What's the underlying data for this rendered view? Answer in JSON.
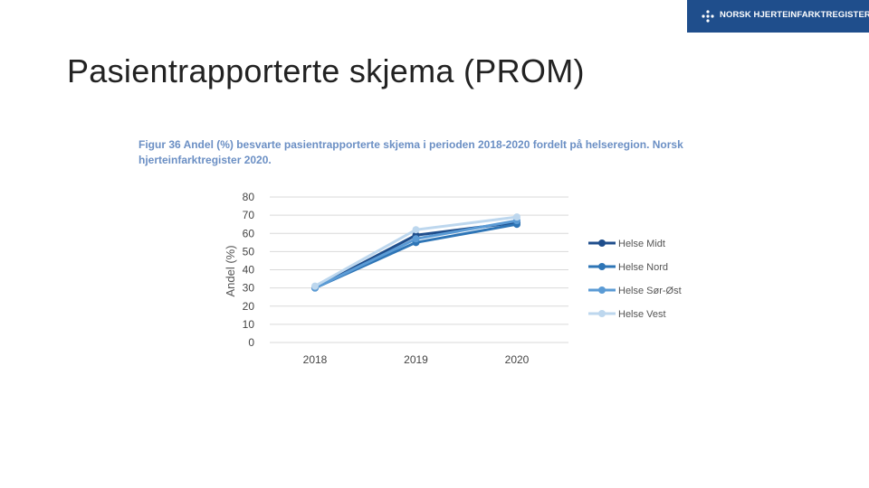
{
  "logo": {
    "text": "NORSK HJERTEINFARKTREGISTER",
    "icon": "dots-cross-icon",
    "bg_color": "#1f4e8c"
  },
  "slide": {
    "title": "Pasientrapporterte skjema (PROM)"
  },
  "figure": {
    "caption": "Figur 36 Andel (%) besvarte pasientrapporterte skjema i perioden 2018-2020 fordelt på helseregion. Norsk hjerteinfarktregister 2020.",
    "caption_color": "#6b8fc4"
  },
  "chart_data": {
    "type": "line",
    "categories": [
      "2018",
      "2019",
      "2020"
    ],
    "series": [
      {
        "name": "Helse Midt",
        "values": [
          30,
          59,
          66
        ],
        "color": "#1f4e8c"
      },
      {
        "name": "Helse Nord",
        "values": [
          30,
          55,
          65
        ],
        "color": "#2e75b6"
      },
      {
        "name": "Helse Sør-Øst",
        "values": [
          30,
          57,
          67
        ],
        "color": "#5b9bd5"
      },
      {
        "name": "Helse Vest",
        "values": [
          31,
          62,
          69
        ],
        "color": "#bdd7ee"
      }
    ],
    "ylabel": "Andel (%)",
    "xlabel": "",
    "ylim": [
      0,
      80
    ],
    "yticks": [
      0,
      10,
      20,
      30,
      40,
      50,
      60,
      70,
      80
    ],
    "grid": true,
    "legend_position": "right"
  }
}
